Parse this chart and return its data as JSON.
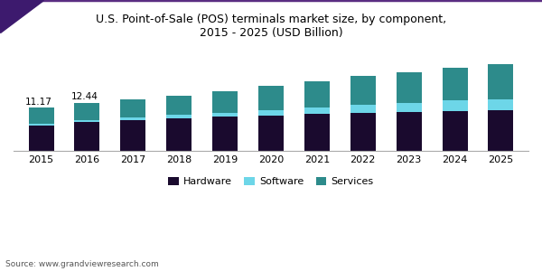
{
  "title": "U.S. Point-of-Sale (POS) terminals market size, by component,\n2015 - 2025 (USD Billion)",
  "years": [
    2015,
    2016,
    2017,
    2018,
    2019,
    2020,
    2021,
    2022,
    2023,
    2024,
    2025
  ],
  "hardware": [
    6.5,
    7.5,
    8.0,
    8.5,
    8.9,
    9.2,
    9.5,
    9.8,
    10.1,
    10.4,
    10.6
  ],
  "software": [
    0.47,
    0.54,
    0.6,
    0.75,
    0.9,
    1.3,
    1.7,
    2.1,
    2.4,
    2.7,
    2.9
  ],
  "services": [
    4.2,
    4.4,
    4.8,
    5.1,
    5.8,
    6.4,
    7.0,
    7.6,
    8.0,
    8.7,
    9.2
  ],
  "annotations": {
    "2015": "11.17",
    "2016": "12.44"
  },
  "hardware_color": "#1a0a2e",
  "software_color": "#6dd6e8",
  "services_color": "#2d8b8b",
  "background_color": "#ffffff",
  "source_text": "Source: www.grandviewresearch.com",
  "ylim": [
    0,
    28
  ],
  "bar_width": 0.55,
  "title_fontsize": 9,
  "legend_fontsize": 8,
  "tick_fontsize": 8,
  "legend_labels": [
    "Hardware",
    "Software",
    "Services"
  ]
}
